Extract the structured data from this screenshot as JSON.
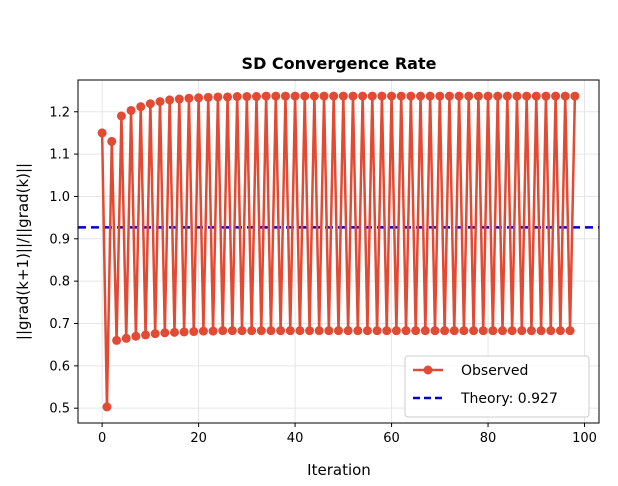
{
  "chart_data": {
    "type": "line",
    "title": "SD Convergence Rate",
    "xlabel": "Iteration",
    "ylabel": "||grad(k+1)||/||grad(k)||",
    "xlim": [
      -5,
      103
    ],
    "ylim": [
      0.465,
      1.275
    ],
    "xticks": [
      0,
      20,
      40,
      60,
      80,
      100
    ],
    "yticks": [
      0.5,
      0.6,
      0.7,
      0.8,
      0.9,
      1.0,
      1.1,
      1.2
    ],
    "grid": true,
    "legend_position": "lower-right",
    "series": [
      {
        "name": "Observed",
        "color": "#e24a33",
        "marker": "circle",
        "x": [
          0,
          1,
          2,
          3,
          4,
          5,
          6,
          7,
          8,
          9,
          10,
          11,
          12,
          13,
          14,
          15,
          16,
          17,
          18,
          19,
          20,
          21,
          22,
          23,
          24,
          25,
          26,
          27,
          28,
          29,
          30,
          31,
          32,
          33,
          34,
          35,
          36,
          37,
          38,
          39,
          40,
          41,
          42,
          43,
          44,
          45,
          46,
          47,
          48,
          49,
          50,
          51,
          52,
          53,
          54,
          55,
          56,
          57,
          58,
          59,
          60,
          61,
          62,
          63,
          64,
          65,
          66,
          67,
          68,
          69,
          70,
          71,
          72,
          73,
          74,
          75,
          76,
          77,
          78,
          79,
          80,
          81,
          82,
          83,
          84,
          85,
          86,
          87,
          88,
          89,
          90,
          91,
          92,
          93,
          94,
          95,
          96,
          97,
          98
        ],
        "y": [
          1.15,
          0.503,
          1.13,
          0.66,
          1.19,
          0.665,
          1.203,
          0.67,
          1.212,
          0.673,
          1.219,
          0.676,
          1.224,
          0.678,
          1.228,
          0.679,
          1.23,
          0.68,
          1.232,
          0.681,
          1.233,
          0.682,
          1.234,
          0.682,
          1.235,
          0.683,
          1.235,
          0.683,
          1.236,
          0.683,
          1.236,
          0.683,
          1.236,
          0.683,
          1.237,
          0.683,
          1.237,
          0.683,
          1.237,
          0.683,
          1.237,
          0.683,
          1.237,
          0.683,
          1.237,
          0.683,
          1.237,
          0.683,
          1.237,
          0.683,
          1.237,
          0.683,
          1.237,
          0.683,
          1.237,
          0.683,
          1.237,
          0.683,
          1.237,
          0.683,
          1.237,
          0.683,
          1.237,
          0.683,
          1.237,
          0.683,
          1.237,
          0.683,
          1.237,
          0.683,
          1.237,
          0.683,
          1.237,
          0.683,
          1.237,
          0.683,
          1.237,
          0.683,
          1.237,
          0.683,
          1.237,
          0.683,
          1.237,
          0.683,
          1.237,
          0.683,
          1.237,
          0.683,
          1.237,
          0.683,
          1.237,
          0.683,
          1.237,
          0.683,
          1.237,
          0.683,
          1.237,
          0.683,
          1.237
        ]
      },
      {
        "name": "Theory: 0.927",
        "color": "#0000cc",
        "style": "dashed",
        "y": 0.927
      }
    ]
  }
}
